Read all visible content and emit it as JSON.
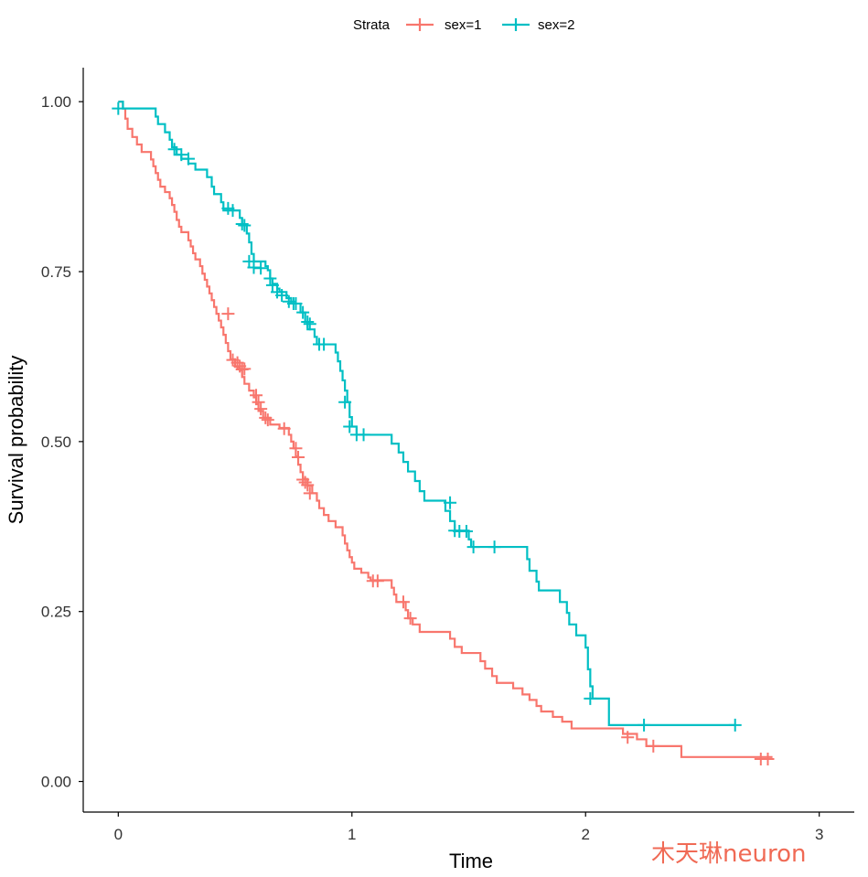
{
  "chart_data": {
    "type": "line",
    "title": "",
    "xlabel": "Time",
    "ylabel": "Survival probability",
    "xlim": [
      -0.15,
      3.15
    ],
    "ylim": [
      -0.045,
      1.05
    ],
    "xticks": [
      0,
      1,
      2,
      3
    ],
    "xtick_labels": [
      "0",
      "1",
      "2",
      "3"
    ],
    "yticks": [
      0,
      0.25,
      0.5,
      0.75,
      1.0
    ],
    "ytick_labels": [
      "0.00",
      "0.25",
      "0.50",
      "0.75",
      "1.00"
    ],
    "grid": false,
    "legend": {
      "title": "Strata",
      "position": "top"
    },
    "series": [
      {
        "name": "sex=1",
        "color": "#F8766D",
        "steps": [
          [
            0,
            1.0
          ],
          [
            0.02,
            0.99
          ],
          [
            0.03,
            0.975
          ],
          [
            0.04,
            0.96
          ],
          [
            0.06,
            0.948
          ],
          [
            0.08,
            0.937
          ],
          [
            0.1,
            0.926
          ],
          [
            0.14,
            0.915
          ],
          [
            0.15,
            0.905
          ],
          [
            0.16,
            0.895
          ],
          [
            0.17,
            0.885
          ],
          [
            0.18,
            0.875
          ],
          [
            0.2,
            0.867
          ],
          [
            0.22,
            0.858
          ],
          [
            0.23,
            0.848
          ],
          [
            0.24,
            0.838
          ],
          [
            0.25,
            0.826
          ],
          [
            0.26,
            0.816
          ],
          [
            0.27,
            0.808
          ],
          [
            0.3,
            0.796
          ],
          [
            0.31,
            0.787
          ],
          [
            0.32,
            0.777
          ],
          [
            0.33,
            0.768
          ],
          [
            0.35,
            0.758
          ],
          [
            0.36,
            0.747
          ],
          [
            0.37,
            0.738
          ],
          [
            0.38,
            0.728
          ],
          [
            0.39,
            0.718
          ],
          [
            0.4,
            0.708
          ],
          [
            0.41,
            0.698
          ],
          [
            0.42,
            0.688
          ],
          [
            0.43,
            0.678
          ],
          [
            0.44,
            0.668
          ],
          [
            0.45,
            0.657
          ],
          [
            0.46,
            0.645
          ],
          [
            0.47,
            0.633
          ],
          [
            0.48,
            0.621
          ],
          [
            0.5,
            0.61
          ],
          [
            0.52,
            0.605
          ],
          [
            0.53,
            0.595
          ],
          [
            0.54,
            0.585
          ],
          [
            0.56,
            0.575
          ],
          [
            0.58,
            0.565
          ],
          [
            0.59,
            0.555
          ],
          [
            0.6,
            0.545
          ],
          [
            0.62,
            0.535
          ],
          [
            0.65,
            0.525
          ],
          [
            0.69,
            0.52
          ],
          [
            0.73,
            0.51
          ],
          [
            0.74,
            0.5
          ],
          [
            0.75,
            0.49
          ],
          [
            0.76,
            0.478
          ],
          [
            0.77,
            0.466
          ],
          [
            0.78,
            0.455
          ],
          [
            0.79,
            0.445
          ],
          [
            0.81,
            0.435
          ],
          [
            0.83,
            0.424
          ],
          [
            0.85,
            0.413
          ],
          [
            0.86,
            0.402
          ],
          [
            0.88,
            0.392
          ],
          [
            0.9,
            0.383
          ],
          [
            0.93,
            0.374
          ],
          [
            0.96,
            0.362
          ],
          [
            0.97,
            0.35
          ],
          [
            0.98,
            0.34
          ],
          [
            0.99,
            0.33
          ],
          [
            1.0,
            0.322
          ],
          [
            1.01,
            0.313
          ],
          [
            1.04,
            0.307
          ],
          [
            1.07,
            0.3
          ],
          [
            1.08,
            0.296
          ],
          [
            1.17,
            0.285
          ],
          [
            1.18,
            0.275
          ],
          [
            1.19,
            0.264
          ],
          [
            1.23,
            0.252
          ],
          [
            1.24,
            0.24
          ],
          [
            1.26,
            0.231
          ],
          [
            1.29,
            0.22
          ],
          [
            1.42,
            0.21
          ],
          [
            1.44,
            0.198
          ],
          [
            1.47,
            0.189
          ],
          [
            1.55,
            0.177
          ],
          [
            1.57,
            0.166
          ],
          [
            1.6,
            0.155
          ],
          [
            1.62,
            0.145
          ],
          [
            1.69,
            0.137
          ],
          [
            1.73,
            0.128
          ],
          [
            1.76,
            0.12
          ],
          [
            1.79,
            0.111
          ],
          [
            1.81,
            0.103
          ],
          [
            1.86,
            0.095
          ],
          [
            1.9,
            0.088
          ],
          [
            1.94,
            0.078
          ],
          [
            2.16,
            0.07
          ],
          [
            2.22,
            0.062
          ],
          [
            2.26,
            0.052
          ],
          [
            2.41,
            0.036
          ],
          [
            2.8,
            0.036
          ]
        ],
        "censored": [
          [
            0.47,
            0.688
          ],
          [
            0.49,
            0.62
          ],
          [
            0.51,
            0.616
          ],
          [
            0.52,
            0.611
          ],
          [
            0.53,
            0.606
          ],
          [
            0.54,
            0.607
          ],
          [
            0.59,
            0.568
          ],
          [
            0.6,
            0.558
          ],
          [
            0.61,
            0.548
          ],
          [
            0.63,
            0.535
          ],
          [
            0.64,
            0.532
          ],
          [
            0.71,
            0.519
          ],
          [
            0.76,
            0.49
          ],
          [
            0.77,
            0.477
          ],
          [
            0.79,
            0.444
          ],
          [
            0.8,
            0.44
          ],
          [
            0.81,
            0.436
          ],
          [
            0.82,
            0.424
          ],
          [
            1.09,
            0.295
          ],
          [
            1.11,
            0.295
          ],
          [
            1.22,
            0.264
          ],
          [
            1.25,
            0.24
          ],
          [
            2.18,
            0.065
          ],
          [
            2.29,
            0.052
          ],
          [
            2.75,
            0.033
          ],
          [
            2.78,
            0.033
          ]
        ]
      },
      {
        "name": "sex=2",
        "color": "#00BFC4",
        "steps": [
          [
            0,
            1.0
          ],
          [
            0.02,
            0.99
          ],
          [
            0.16,
            0.978
          ],
          [
            0.17,
            0.967
          ],
          [
            0.2,
            0.955
          ],
          [
            0.22,
            0.944
          ],
          [
            0.23,
            0.933
          ],
          [
            0.25,
            0.922
          ],
          [
            0.27,
            0.916
          ],
          [
            0.3,
            0.909
          ],
          [
            0.33,
            0.9
          ],
          [
            0.38,
            0.889
          ],
          [
            0.4,
            0.875
          ],
          [
            0.41,
            0.864
          ],
          [
            0.44,
            0.852
          ],
          [
            0.45,
            0.84
          ],
          [
            0.52,
            0.829
          ],
          [
            0.53,
            0.818
          ],
          [
            0.55,
            0.806
          ],
          [
            0.56,
            0.793
          ],
          [
            0.57,
            0.776
          ],
          [
            0.58,
            0.765
          ],
          [
            0.63,
            0.758
          ],
          [
            0.64,
            0.752
          ],
          [
            0.65,
            0.74
          ],
          [
            0.66,
            0.732
          ],
          [
            0.68,
            0.725
          ],
          [
            0.69,
            0.72
          ],
          [
            0.72,
            0.711
          ],
          [
            0.74,
            0.703
          ],
          [
            0.78,
            0.69
          ],
          [
            0.8,
            0.676
          ],
          [
            0.81,
            0.665
          ],
          [
            0.84,
            0.654
          ],
          [
            0.85,
            0.643
          ],
          [
            0.93,
            0.631
          ],
          [
            0.94,
            0.618
          ],
          [
            0.95,
            0.604
          ],
          [
            0.96,
            0.59
          ],
          [
            0.97,
            0.575
          ],
          [
            0.98,
            0.558
          ],
          [
            0.99,
            0.536
          ],
          [
            1.0,
            0.522
          ],
          [
            1.02,
            0.51
          ],
          [
            1.17,
            0.497
          ],
          [
            1.2,
            0.484
          ],
          [
            1.22,
            0.47
          ],
          [
            1.24,
            0.456
          ],
          [
            1.27,
            0.442
          ],
          [
            1.29,
            0.427
          ],
          [
            1.31,
            0.413
          ],
          [
            1.4,
            0.398
          ],
          [
            1.42,
            0.383
          ],
          [
            1.44,
            0.369
          ],
          [
            1.5,
            0.356
          ],
          [
            1.51,
            0.345
          ],
          [
            1.75,
            0.327
          ],
          [
            1.76,
            0.31
          ],
          [
            1.79,
            0.294
          ],
          [
            1.8,
            0.281
          ],
          [
            1.89,
            0.264
          ],
          [
            1.92,
            0.248
          ],
          [
            1.93,
            0.231
          ],
          [
            1.96,
            0.215
          ],
          [
            2.0,
            0.197
          ],
          [
            2.01,
            0.165
          ],
          [
            2.02,
            0.14
          ],
          [
            2.03,
            0.122
          ],
          [
            2.1,
            0.083
          ],
          [
            2.64,
            0.083
          ]
        ],
        "censored": [
          [
            0.0,
            0.99
          ],
          [
            0.24,
            0.93
          ],
          [
            0.27,
            0.922
          ],
          [
            0.3,
            0.916
          ],
          [
            0.47,
            0.843
          ],
          [
            0.49,
            0.84
          ],
          [
            0.53,
            0.82
          ],
          [
            0.54,
            0.818
          ],
          [
            0.56,
            0.765
          ],
          [
            0.58,
            0.756
          ],
          [
            0.61,
            0.755
          ],
          [
            0.65,
            0.74
          ],
          [
            0.66,
            0.73
          ],
          [
            0.68,
            0.72
          ],
          [
            0.7,
            0.715
          ],
          [
            0.73,
            0.706
          ],
          [
            0.75,
            0.703
          ],
          [
            0.76,
            0.703
          ],
          [
            0.79,
            0.69
          ],
          [
            0.81,
            0.676
          ],
          [
            0.82,
            0.673
          ],
          [
            0.86,
            0.643
          ],
          [
            0.88,
            0.643
          ],
          [
            0.97,
            0.558
          ],
          [
            0.99,
            0.522
          ],
          [
            1.02,
            0.51
          ],
          [
            1.05,
            0.51
          ],
          [
            1.42,
            0.41
          ],
          [
            1.44,
            0.369
          ],
          [
            1.46,
            0.368
          ],
          [
            1.49,
            0.368
          ],
          [
            1.52,
            0.345
          ],
          [
            1.61,
            0.345
          ],
          [
            2.02,
            0.122
          ],
          [
            2.25,
            0.083
          ],
          [
            2.64,
            0.083
          ]
        ]
      }
    ]
  },
  "watermark": "木天琳neuron"
}
